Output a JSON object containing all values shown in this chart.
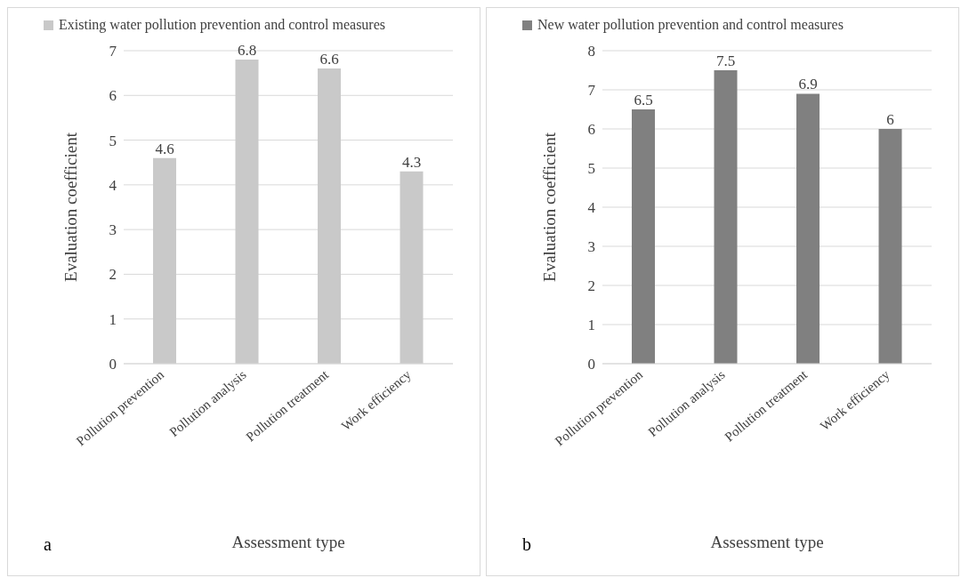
{
  "chart_data": [
    {
      "type": "bar",
      "categories": [
        "Pollution prevention",
        "Pollution analysis",
        "Pollution treatment",
        "Work efficiency"
      ],
      "series": [
        {
          "name": "Existing water pollution prevention and control measures",
          "color": "#c9c9c9",
          "values": [
            4.6,
            6.8,
            6.6,
            4.3
          ]
        }
      ],
      "xlabel": "Assessment type",
      "ylabel": "Evaluation coefficient",
      "ylim": [
        0,
        7
      ],
      "yticks": [
        0,
        1,
        2,
        3,
        4,
        5,
        6,
        7
      ],
      "grid": "y",
      "legend": "top",
      "data_labels": true,
      "annotations": [
        "a"
      ]
    },
    {
      "type": "bar",
      "categories": [
        "Pollution prevention",
        "Pollution analysis",
        "Pollution treatment",
        "Work efficiency"
      ],
      "series": [
        {
          "name": "New water pollution prevention and control measures",
          "color": "#808080",
          "values": [
            6.5,
            7.5,
            6.9,
            6
          ]
        }
      ],
      "xlabel": "Assessment type",
      "ylabel": "Evaluation coefficient",
      "ylim": [
        0,
        8
      ],
      "yticks": [
        0,
        1,
        2,
        3,
        4,
        5,
        6,
        7,
        8
      ],
      "grid": "y",
      "legend": "top",
      "data_labels": true,
      "annotations": [
        "b"
      ]
    }
  ]
}
